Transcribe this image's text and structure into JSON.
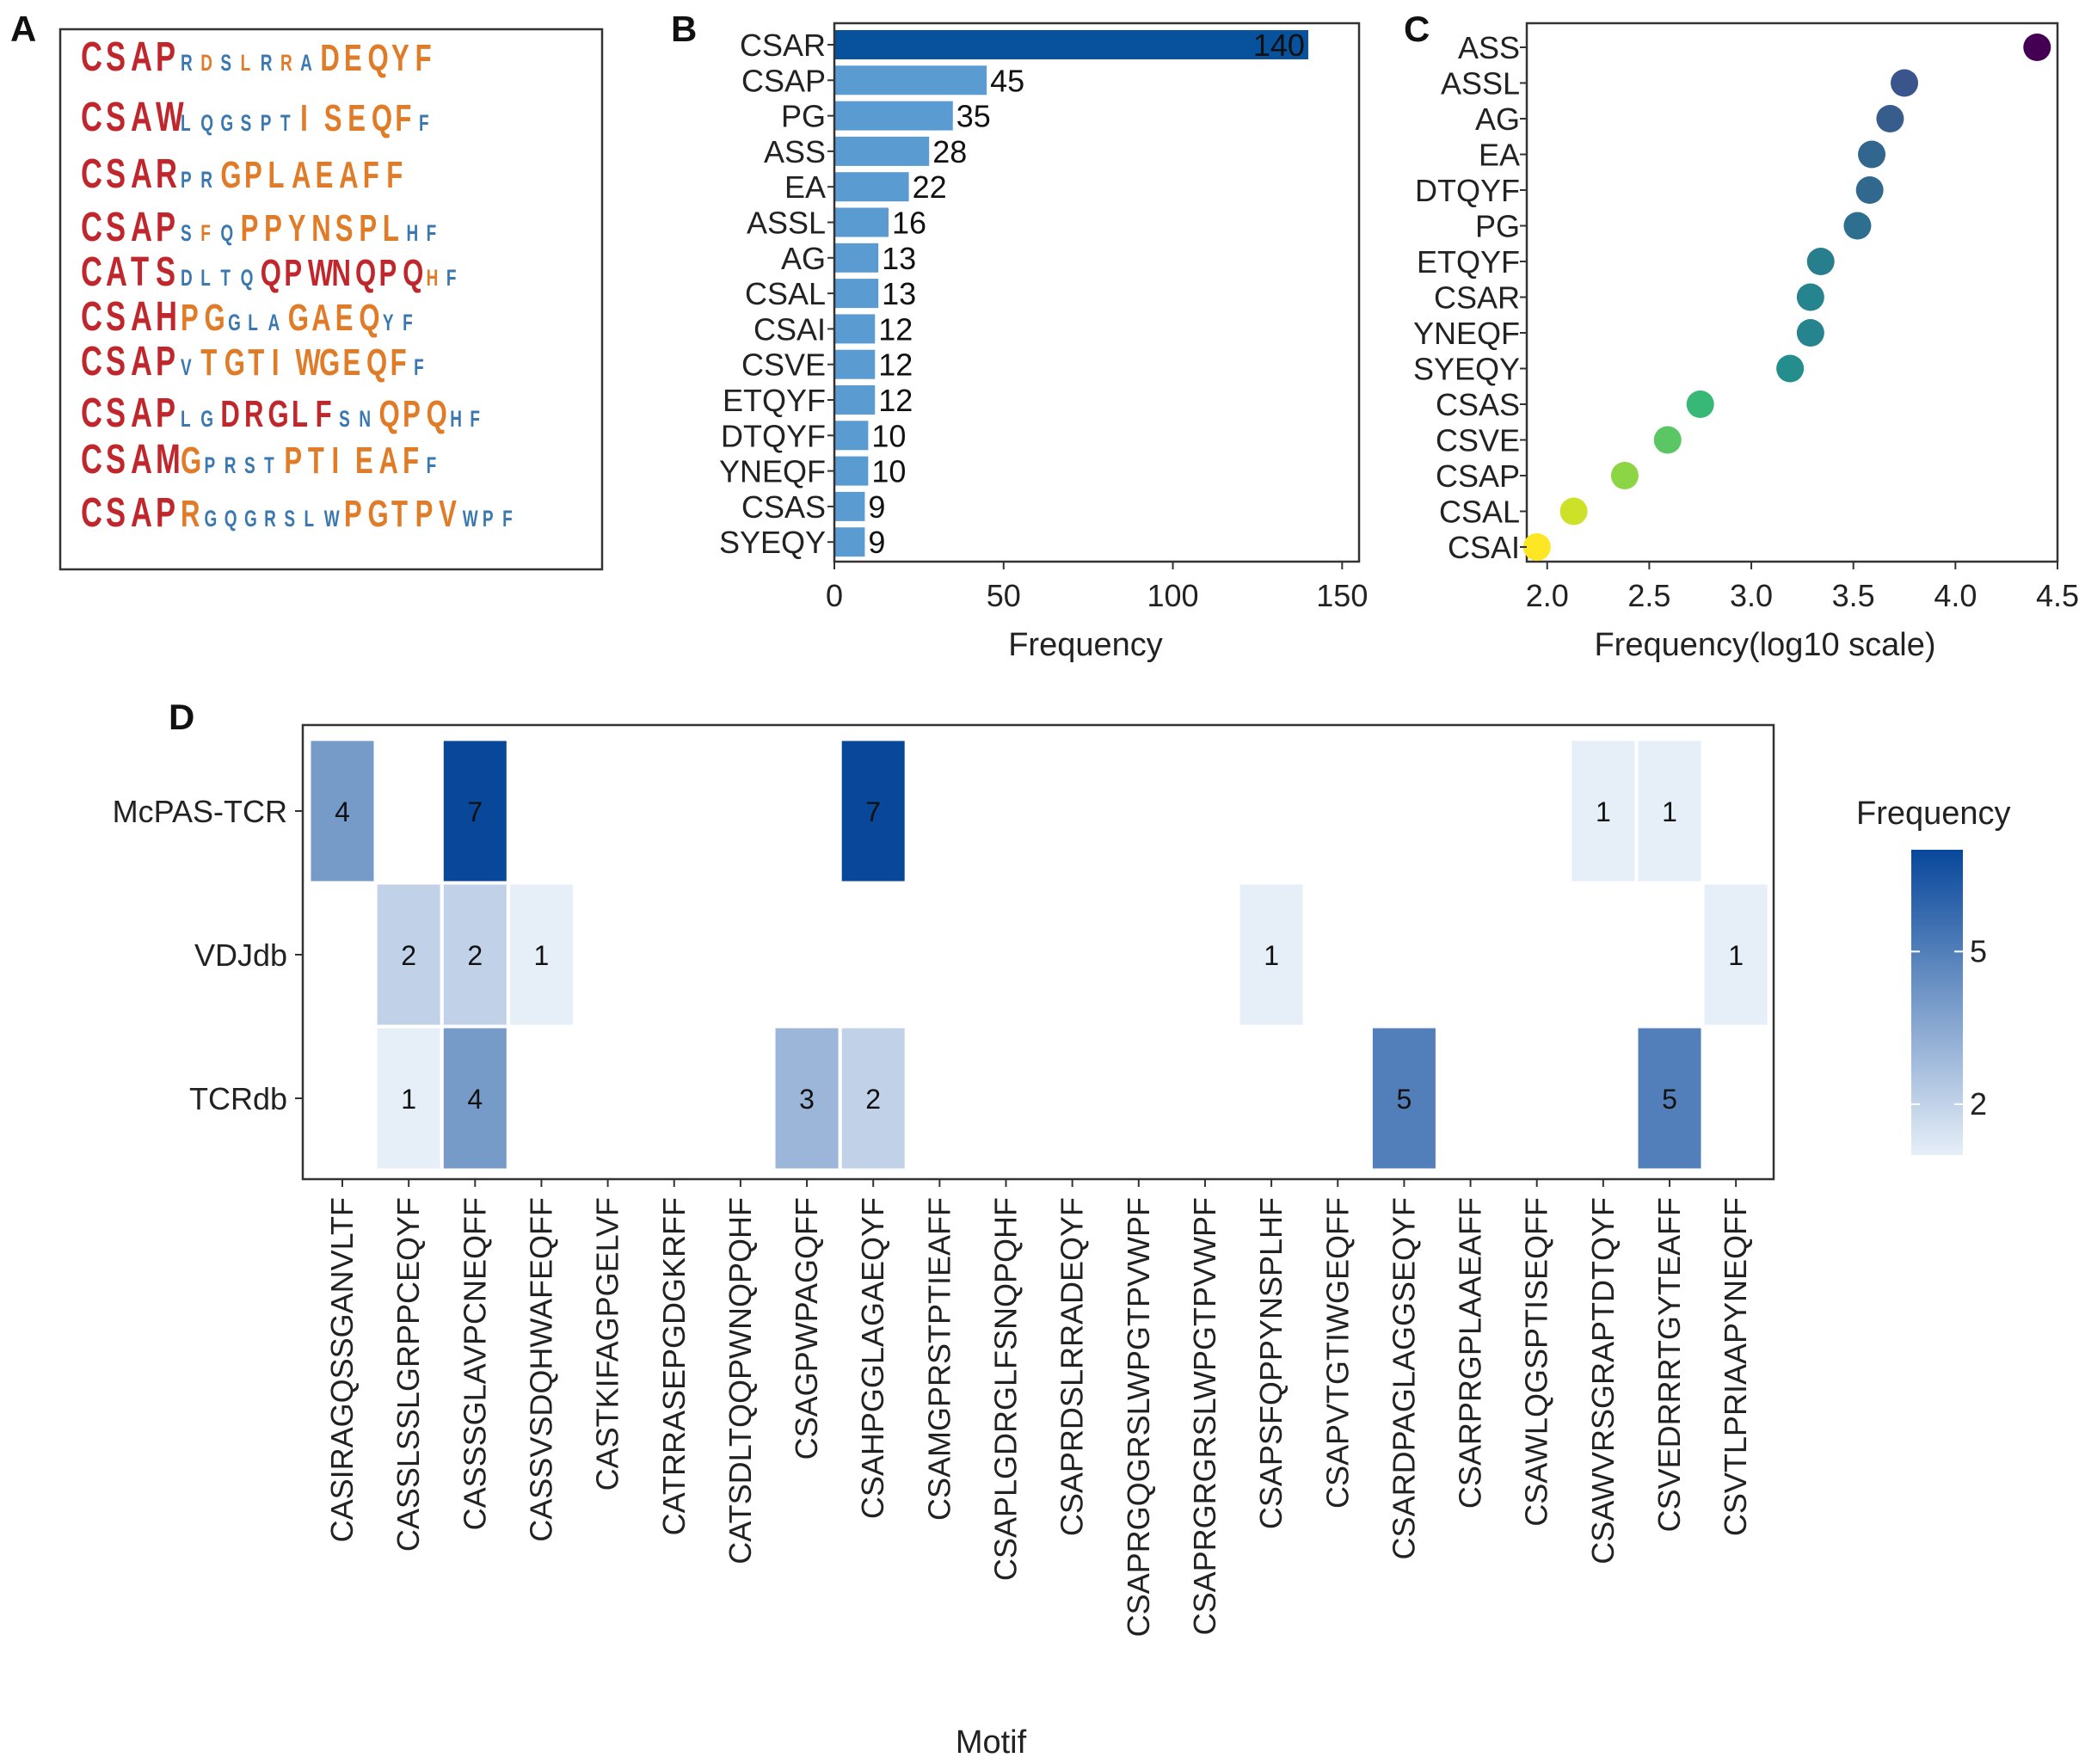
{
  "panel_labels": {
    "a": "A",
    "b": "B",
    "c": "C",
    "d": "D"
  },
  "colors": {
    "motif_core": "#c0272d",
    "motif_orange": "#e07b28",
    "motif_blue": "#3b78b0",
    "bar_top": "#08519c",
    "bar_other": "#5a9bd2",
    "heat_low": "#e6eef8",
    "heat_high": "#08479a"
  },
  "panel_a": {
    "motifs": [
      {
        "segments": [
          {
            "text": "CSAP",
            "color": "core",
            "scale": 1.0
          },
          {
            "text": "RDSLRRA",
            "color": "mixed",
            "scale": 0.55
          },
          {
            "text": "DEQYF",
            "color": "orange",
            "scale": 0.9
          }
        ]
      },
      {
        "segments": [
          {
            "text": "CSAW",
            "color": "core",
            "scale": 1.0
          },
          {
            "text": "LQGSPT",
            "color": "blue",
            "scale": 0.55
          },
          {
            "text": "ISEQF",
            "color": "orange",
            "scale": 0.9
          },
          {
            "text": "F",
            "color": "blue",
            "scale": 0.55
          }
        ]
      },
      {
        "segments": [
          {
            "text": "CSAR",
            "color": "core",
            "scale": 1.0
          },
          {
            "text": "PR",
            "color": "blue",
            "scale": 0.55
          },
          {
            "text": "GPLAEAFF",
            "color": "orange",
            "scale": 0.9
          }
        ]
      },
      {
        "segments": [
          {
            "text": "CSAP",
            "color": "core",
            "scale": 1.0
          },
          {
            "text": "SFQ",
            "color": "mixed",
            "scale": 0.55
          },
          {
            "text": "PPYNSPL",
            "color": "orange",
            "scale": 0.9
          },
          {
            "text": "HF",
            "color": "blue",
            "scale": 0.55
          }
        ]
      },
      {
        "segments": [
          {
            "text": "CATS",
            "color": "core",
            "scale": 1.0
          },
          {
            "text": "DLTQ",
            "color": "blue",
            "scale": 0.55
          },
          {
            "text": "QPWNQPQ",
            "color": "core",
            "scale": 0.9
          },
          {
            "text": "HF",
            "color": "mixed",
            "scale": 0.55
          }
        ]
      },
      {
        "segments": [
          {
            "text": "CSAH",
            "color": "core",
            "scale": 1.0
          },
          {
            "text": "PG",
            "color": "orange",
            "scale": 0.9
          },
          {
            "text": "GLA",
            "color": "blue",
            "scale": 0.55
          },
          {
            "text": "GAEQ",
            "color": "orange",
            "scale": 0.9
          },
          {
            "text": "YF",
            "color": "blue",
            "scale": 0.55
          }
        ]
      },
      {
        "segments": [
          {
            "text": "CSAP",
            "color": "core",
            "scale": 1.0
          },
          {
            "text": "V",
            "color": "blue",
            "scale": 0.55
          },
          {
            "text": "TGTIWGEQF",
            "color": "orange",
            "scale": 0.9
          },
          {
            "text": "F",
            "color": "blue",
            "scale": 0.55
          }
        ]
      },
      {
        "segments": [
          {
            "text": "CSAP",
            "color": "core",
            "scale": 1.0
          },
          {
            "text": "LG",
            "color": "blue",
            "scale": 0.55
          },
          {
            "text": "DRGLF",
            "color": "core",
            "scale": 0.9
          },
          {
            "text": "SN",
            "color": "blue",
            "scale": 0.55
          },
          {
            "text": "QPQ",
            "color": "orange",
            "scale": 0.9
          },
          {
            "text": "HF",
            "color": "blue",
            "scale": 0.55
          }
        ]
      },
      {
        "segments": [
          {
            "text": "CSAM",
            "color": "core",
            "scale": 1.0
          },
          {
            "text": "G",
            "color": "orange",
            "scale": 0.9
          },
          {
            "text": "PRST",
            "color": "blue",
            "scale": 0.55
          },
          {
            "text": "PTIEAF",
            "color": "orange",
            "scale": 0.9
          },
          {
            "text": "F",
            "color": "blue",
            "scale": 0.55
          }
        ]
      },
      {
        "segments": [
          {
            "text": "CSAP",
            "color": "core",
            "scale": 1.0
          },
          {
            "text": "R",
            "color": "orange",
            "scale": 0.9
          },
          {
            "text": "GQGRSLW",
            "color": "blue",
            "scale": 0.55
          },
          {
            "text": "PGTPV",
            "color": "orange",
            "scale": 0.9
          },
          {
            "text": "WPF",
            "color": "blue",
            "scale": 0.55
          }
        ]
      }
    ]
  },
  "chart_data": [
    {
      "panel": "B",
      "type": "bar",
      "orientation": "horizontal",
      "categories": [
        "CSAR",
        "CSAP",
        "PG",
        "ASS",
        "EA",
        "ASSL",
        "AG",
        "CSAL",
        "CSAI",
        "CSVE",
        "ETQYF",
        "DTQYF",
        "YNEQF",
        "CSAS",
        "SYEQY"
      ],
      "values": [
        140,
        45,
        35,
        28,
        22,
        16,
        13,
        13,
        12,
        12,
        12,
        10,
        10,
        9,
        9
      ],
      "xlabel": "Frequency",
      "ylabel": "",
      "xlim": [
        0,
        155
      ],
      "xticks": [
        0,
        50,
        100,
        150
      ],
      "grid": false
    },
    {
      "panel": "C",
      "type": "scatter",
      "categories": [
        "ASS",
        "ASSL",
        "AG",
        "EA",
        "DTQYF",
        "PG",
        "ETQYF",
        "CSAR",
        "YNEQF",
        "SYEQY",
        "CSAS",
        "CSVE",
        "CSAP",
        "CSAL",
        "CSAI"
      ],
      "values": [
        4.4,
        3.75,
        3.68,
        3.59,
        3.58,
        3.52,
        3.34,
        3.29,
        3.29,
        3.19,
        2.75,
        2.59,
        2.38,
        2.13,
        1.95
      ],
      "xlabel": "Frequency(log10 scale)",
      "ylabel": "",
      "xlim": [
        1.9,
        4.5
      ],
      "xticks": [
        2.0,
        2.5,
        3.0,
        3.5,
        4.0,
        4.5
      ],
      "xtick_labels": [
        "2.0",
        "2.5",
        "3.0",
        "3.5",
        "4.0",
        "4.5"
      ],
      "color_scale": "viridis (low=yellow, high=purple)",
      "grid": false
    },
    {
      "panel": "D",
      "type": "heatmap",
      "x": [
        "CASIRAGQSSGANVLTF",
        "CASSLSSLGRPPCEQYF",
        "CASSSGLAVPCNEQFF",
        "CASSVSDQHWAFEQFF",
        "CASTKIFAGPGELVF",
        "CATRRASEPGDGKRFF",
        "CATSDLTQQPWNQPQHF",
        "CSAGPWPAGQFF",
        "CSAHPGGLAGAEQYF",
        "CSAMGPRSTPTIEAFF",
        "CSAPLGDRGLFSNQPQHF",
        "CSAPRDSLRRADEQYF",
        "CSAPRGQGRSLWPGTPVWPF",
        "CSAPRGRGRSLWPGTPVWPF",
        "CSAPSFQPPYNSPLHF",
        "CSAPVTGTIWGEQFF",
        "CSARDPAGLAGGSEQYF",
        "CSARPRGPLAAEAFF",
        "CSAWLQGSPTISEQFF",
        "CSAWVRSGRAPTDTQYF",
        "CSVEDRRRTGYTEAFF",
        "CSVTLPRIAAPYNEQFF"
      ],
      "y": [
        "McPAS-TCR",
        "VDJdb",
        "TCRdb"
      ],
      "cells": [
        {
          "row": "McPAS-TCR",
          "col": 0,
          "value": 4
        },
        {
          "row": "McPAS-TCR",
          "col": 2,
          "value": 7
        },
        {
          "row": "McPAS-TCR",
          "col": 8,
          "value": 7
        },
        {
          "row": "McPAS-TCR",
          "col": 19,
          "value": 1
        },
        {
          "row": "McPAS-TCR",
          "col": 20,
          "value": 1
        },
        {
          "row": "VDJdb",
          "col": 1,
          "value": 2
        },
        {
          "row": "VDJdb",
          "col": 2,
          "value": 2
        },
        {
          "row": "VDJdb",
          "col": 3,
          "value": 1
        },
        {
          "row": "VDJdb",
          "col": 14,
          "value": 1
        },
        {
          "row": "VDJdb",
          "col": 21,
          "value": 1
        },
        {
          "row": "TCRdb",
          "col": 1,
          "value": 1
        },
        {
          "row": "TCRdb",
          "col": 2,
          "value": 4
        },
        {
          "row": "TCRdb",
          "col": 7,
          "value": 3
        },
        {
          "row": "TCRdb",
          "col": 8,
          "value": 2
        },
        {
          "row": "TCRdb",
          "col": 16,
          "value": 5
        },
        {
          "row": "TCRdb",
          "col": 20,
          "value": 5
        }
      ],
      "xlabel": "Motif",
      "ylabel": "",
      "value_range": [
        1,
        7
      ],
      "legend": {
        "title": "Frequency",
        "ticks": [
          2,
          5
        ],
        "tick_labels": [
          "2",
          "5"
        ],
        "position": "right"
      }
    }
  ]
}
